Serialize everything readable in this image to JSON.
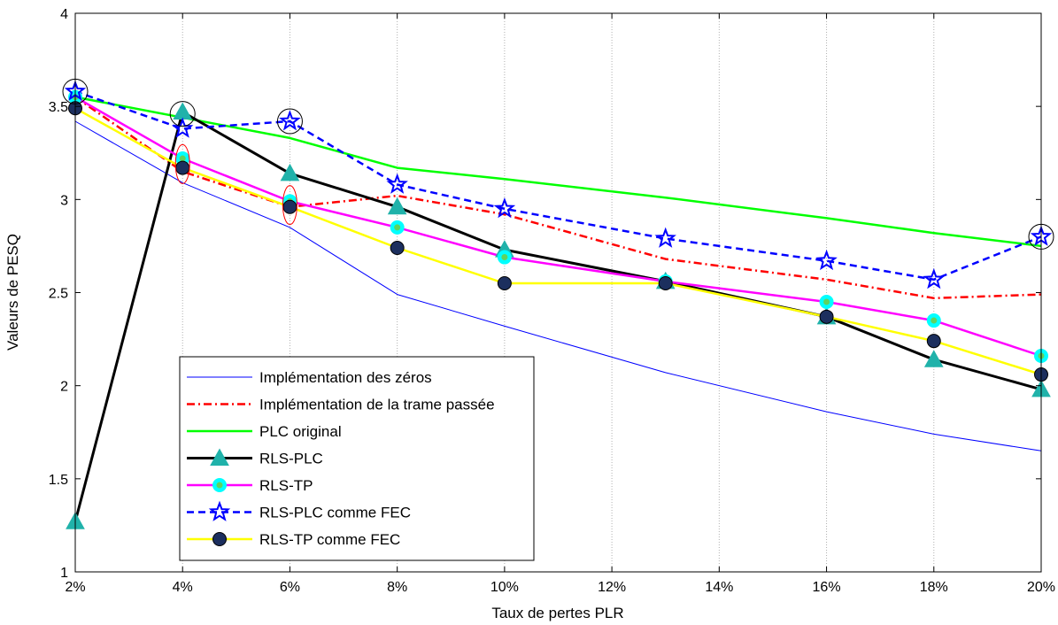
{
  "chart_data": {
    "type": "line",
    "title": "",
    "xlabel": "Taux de pertes PLR",
    "ylabel": "Valeurs de PESQ",
    "ylim": [
      1,
      4
    ],
    "yticks": [
      "1",
      "1.5",
      "2",
      "2.5",
      "3",
      "3.5",
      "4"
    ],
    "categories": [
      "2%",
      "4%",
      "6%",
      "8%",
      "10%",
      "12%",
      "14%",
      "16%",
      "18%",
      "20%"
    ],
    "x": [
      2,
      4,
      6,
      8,
      10,
      13,
      16,
      18,
      20
    ],
    "xlim": [
      2,
      20
    ],
    "xticks": [
      2,
      4,
      6,
      8,
      10,
      12,
      14,
      16,
      18,
      20
    ],
    "grid": "vertical",
    "legend_position": "bottom-left",
    "series": [
      {
        "name": "Implémentation des zéros",
        "values": [
          3.42,
          3.09,
          2.85,
          2.49,
          2.32,
          2.07,
          1.86,
          1.74,
          1.65
        ],
        "color": "#0000ff",
        "style": "thin-solid",
        "marker": "none"
      },
      {
        "name": "Implémentation de la trame passée",
        "values": [
          3.55,
          3.15,
          2.96,
          3.02,
          2.92,
          2.68,
          2.57,
          2.47,
          2.49
        ],
        "color": "#ff0000",
        "style": "dashdot",
        "marker": "none"
      },
      {
        "name": "PLC original",
        "values": [
          3.55,
          3.44,
          3.33,
          3.17,
          3.11,
          3.01,
          2.9,
          2.82,
          2.75
        ],
        "color": "#00ff00",
        "style": "solid",
        "marker": "none"
      },
      {
        "name": "RLS-PLC",
        "values": [
          1.27,
          3.47,
          3.14,
          2.96,
          2.73,
          2.56,
          2.37,
          2.14,
          1.98
        ],
        "color": "#000000",
        "style": "solid-thick",
        "marker": "triangle",
        "marker_color": "#20b2aa"
      },
      {
        "name": "RLS-TP",
        "values": [
          3.55,
          3.22,
          2.99,
          2.85,
          2.69,
          2.56,
          2.45,
          2.35,
          2.16
        ],
        "color": "#ff00ff",
        "style": "solid",
        "marker": "circle",
        "marker_color": "#00ffff"
      },
      {
        "name": "RLS-PLC comme FEC",
        "values": [
          3.58,
          3.38,
          3.42,
          3.08,
          2.95,
          2.79,
          2.67,
          2.57,
          2.8
        ],
        "color": "#0000ff",
        "style": "dashed",
        "marker": "star",
        "marker_color": "#0000ff"
      },
      {
        "name": "RLS-TP comme FEC",
        "values": [
          3.49,
          3.17,
          2.96,
          2.74,
          2.55,
          2.55,
          2.37,
          2.24,
          2.06
        ],
        "color": "#ffff00",
        "style": "solid",
        "marker": "circle",
        "marker_color": "#1c2f5e"
      }
    ],
    "annotations": [
      {
        "kind": "black-circle",
        "x": 2,
        "y": 3.58
      },
      {
        "kind": "black-circle",
        "x": 4,
        "y": 3.46
      },
      {
        "kind": "black-circle",
        "x": 6,
        "y": 3.42
      },
      {
        "kind": "black-circle",
        "x": 20,
        "y": 2.8
      },
      {
        "kind": "red-ellipse",
        "x": 4,
        "y": 3.19
      },
      {
        "kind": "red-ellipse",
        "x": 6,
        "y": 2.97
      }
    ]
  }
}
